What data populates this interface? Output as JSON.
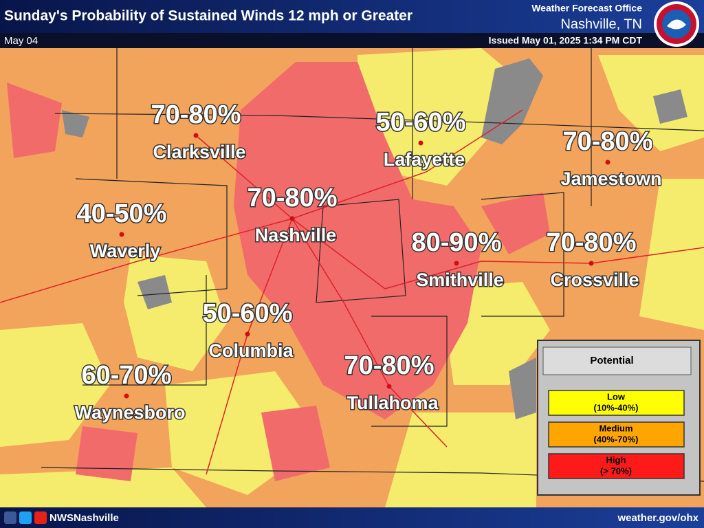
{
  "header": {
    "title": "Sunday's Probability of Sustained Winds 12 mph or Greater",
    "date": "May 04",
    "office": "Weather Forecast Office",
    "location": "Nashville, TN",
    "issued": "Issued May 01, 2025 1:34 PM CDT"
  },
  "cities": [
    {
      "name": "Clarksville",
      "range": "70-80%"
    },
    {
      "name": "Lafayette",
      "range": "50-60%"
    },
    {
      "name": "Jamestown",
      "range": "70-80%"
    },
    {
      "name": "Nashville",
      "range": "70-80%"
    },
    {
      "name": "Waverly",
      "range": "40-50%"
    },
    {
      "name": "Smithville",
      "range": "80-90%"
    },
    {
      "name": "Crossville",
      "range": "70-80%"
    },
    {
      "name": "Columbia",
      "range": "50-60%"
    },
    {
      "name": "Tullahoma",
      "range": "70-80%"
    },
    {
      "name": "Waynesboro",
      "range": "60-70%"
    }
  ],
  "legend": {
    "title": "Potential",
    "items": [
      {
        "label": "Low",
        "range": "(10%-40%)"
      },
      {
        "label": "Medium",
        "range": "(40%-70%)"
      },
      {
        "label": "High",
        "range": "(> 70%)"
      }
    ]
  },
  "footer": {
    "social": "NWSNashville",
    "url": "weather.gov/ohx"
  }
}
